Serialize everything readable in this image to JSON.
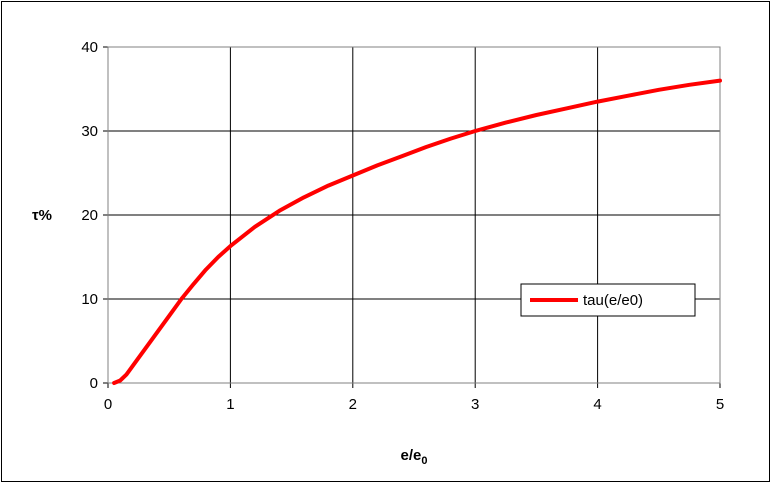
{
  "chart_data": {
    "type": "line",
    "title": "",
    "xlabel_main": "e/e",
    "xlabel_sub": "0",
    "ylabel": "τ%",
    "xlim": [
      0,
      5
    ],
    "ylim": [
      0,
      40
    ],
    "x_ticks": [
      "0",
      "1",
      "2",
      "3",
      "4",
      "5"
    ],
    "y_ticks": [
      "0",
      "10",
      "20",
      "30",
      "40"
    ],
    "grid": true,
    "legend_position": "right",
    "series": [
      {
        "name": "tau(e/e0)",
        "color": "#ff0000",
        "x": [
          0.05,
          0.1,
          0.15,
          0.2,
          0.3,
          0.4,
          0.5,
          0.6,
          0.7,
          0.8,
          0.9,
          1.0,
          1.2,
          1.4,
          1.6,
          1.8,
          2.0,
          2.2,
          2.4,
          2.6,
          2.8,
          3.0,
          3.25,
          3.5,
          3.75,
          4.0,
          4.25,
          4.5,
          4.75,
          5.0
        ],
        "y": [
          0,
          0.3,
          1.0,
          2.0,
          4.0,
          6.0,
          8.0,
          10.0,
          11.8,
          13.5,
          15.0,
          16.3,
          18.6,
          20.5,
          22.1,
          23.5,
          24.7,
          25.9,
          27.0,
          28.1,
          29.1,
          30.0,
          31.0,
          31.9,
          32.7,
          33.5,
          34.2,
          34.9,
          35.5,
          36.0
        ]
      }
    ]
  }
}
